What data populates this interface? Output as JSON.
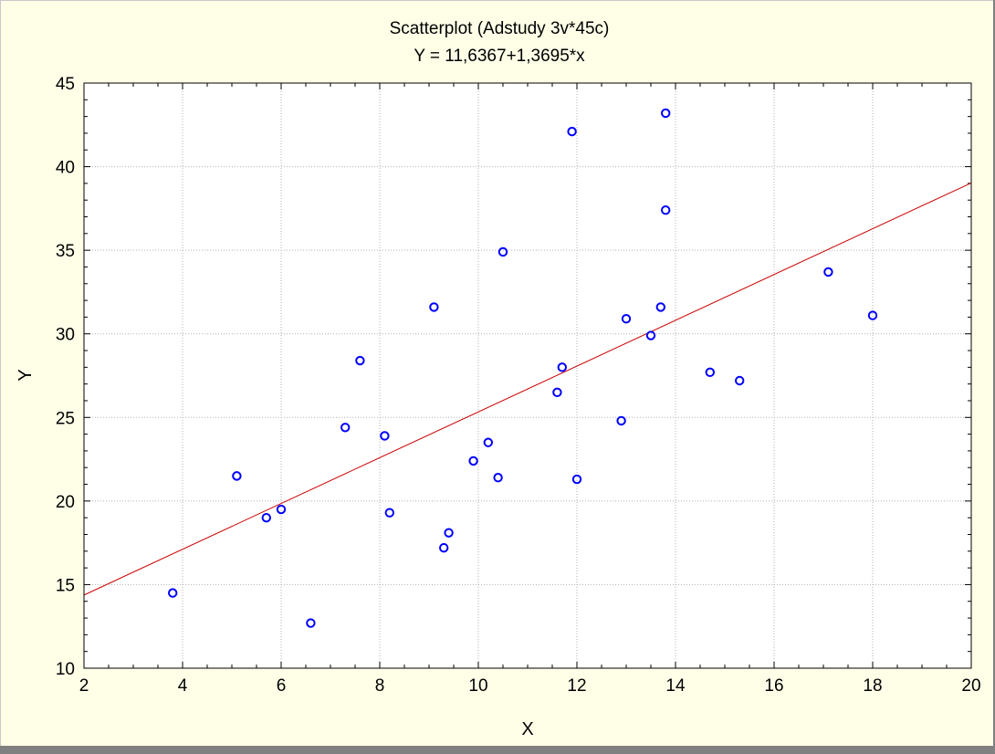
{
  "chart_data": {
    "type": "scatter",
    "title": "Scatterplot (Adstudy 3v*45c)",
    "subtitle": "Y = 11,6367+1,3695*x",
    "xlabel": "X",
    "ylabel": "Y",
    "xlim": [
      2,
      20
    ],
    "ylim": [
      10,
      45
    ],
    "xticks": [
      2,
      4,
      6,
      8,
      10,
      12,
      14,
      16,
      18,
      20
    ],
    "yticks": [
      10,
      15,
      20,
      25,
      30,
      35,
      40,
      45
    ],
    "grid": true,
    "regression": {
      "intercept": 11.6367,
      "slope": 1.3695
    },
    "points": [
      {
        "x": 3.8,
        "y": 14.5
      },
      {
        "x": 5.1,
        "y": 21.5
      },
      {
        "x": 5.7,
        "y": 19.0
      },
      {
        "x": 6.0,
        "y": 19.5
      },
      {
        "x": 6.6,
        "y": 12.7
      },
      {
        "x": 7.3,
        "y": 24.4
      },
      {
        "x": 7.6,
        "y": 28.4
      },
      {
        "x": 8.1,
        "y": 23.9
      },
      {
        "x": 8.2,
        "y": 19.3
      },
      {
        "x": 9.1,
        "y": 31.6
      },
      {
        "x": 9.3,
        "y": 17.2
      },
      {
        "x": 9.4,
        "y": 18.1
      },
      {
        "x": 9.9,
        "y": 22.4
      },
      {
        "x": 10.2,
        "y": 23.5
      },
      {
        "x": 10.4,
        "y": 21.4
      },
      {
        "x": 10.5,
        "y": 34.9
      },
      {
        "x": 11.6,
        "y": 26.5
      },
      {
        "x": 11.7,
        "y": 28.0
      },
      {
        "x": 11.9,
        "y": 42.1
      },
      {
        "x": 12.0,
        "y": 21.3
      },
      {
        "x": 12.9,
        "y": 24.8
      },
      {
        "x": 13.0,
        "y": 30.9
      },
      {
        "x": 13.5,
        "y": 29.9
      },
      {
        "x": 13.7,
        "y": 31.6
      },
      {
        "x": 13.8,
        "y": 43.2
      },
      {
        "x": 13.8,
        "y": 37.4
      },
      {
        "x": 14.7,
        "y": 27.7
      },
      {
        "x": 15.3,
        "y": 27.2
      },
      {
        "x": 17.1,
        "y": 33.7
      },
      {
        "x": 18.0,
        "y": 31.1
      }
    ],
    "colors": {
      "background": "#ffffe8",
      "plot_area": "#ffffff",
      "marker": "#0000ff",
      "regression_line": "#cc0000",
      "grid": "#b0b0b0"
    }
  }
}
